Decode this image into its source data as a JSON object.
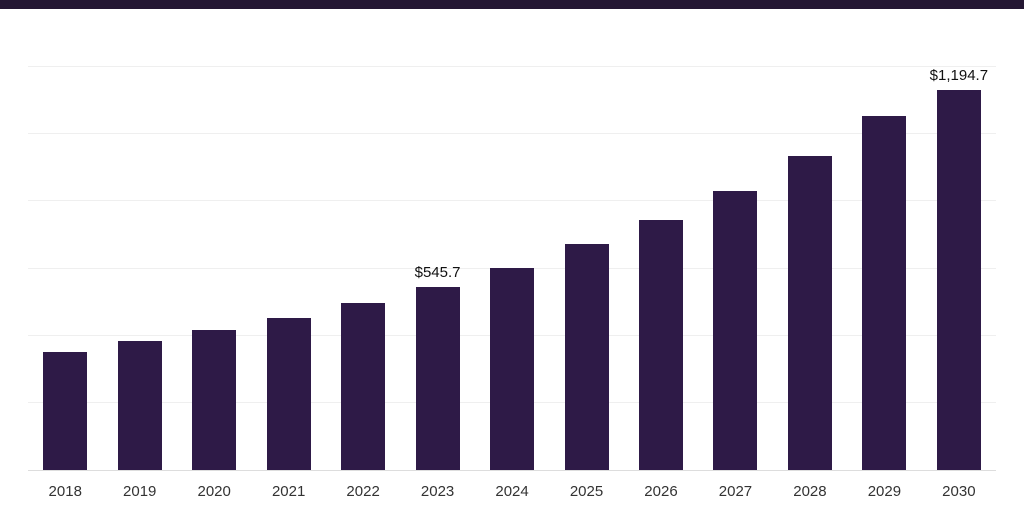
{
  "chart_data": {
    "type": "bar",
    "title": "",
    "xlabel": "",
    "ylabel": "",
    "categories": [
      "2018",
      "2019",
      "2020",
      "2021",
      "2022",
      "2023",
      "2024",
      "2025",
      "2026",
      "2027",
      "2028",
      "2029",
      "2030"
    ],
    "values": [
      351,
      383,
      416,
      452,
      496,
      545.7,
      603,
      672,
      743,
      832,
      936,
      1055,
      1194.7
    ],
    "data_labels": {
      "2023": "$545.7",
      "2030": "$1,194.7"
    },
    "ylim": [
      0,
      1200
    ],
    "gridlines": [
      200,
      400,
      600,
      800,
      1000,
      1200
    ],
    "grid": true,
    "legend": false,
    "bar_color": "#2e1a47"
  },
  "colors": {
    "background": "#ffffff",
    "top_border": "#241733",
    "bar": "#2e1a47",
    "gridline": "#efefef",
    "axis_line": "#dddddd",
    "tick_text": "#333333",
    "value_label_text": "#111111"
  }
}
